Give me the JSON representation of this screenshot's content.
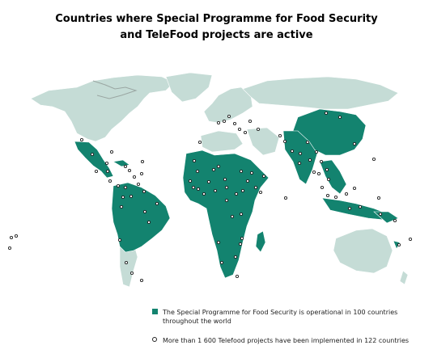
{
  "title": {
    "line1": "Countries where Special Programme for Food Security",
    "line2": "and TeleFood projects are active"
  },
  "colors": {
    "operational": "#13836f",
    "other_land": "#c5dcd6",
    "border": "#ffffff",
    "ice": "#9aa6a2",
    "project_marker": "#222222"
  },
  "legend": {
    "operational_text": "The Special Programme for Food Security is operational in 100 countries throughout the world",
    "telefood_text": "More than 1 600 Telefood projects have been implemented in 122 countries"
  }
}
